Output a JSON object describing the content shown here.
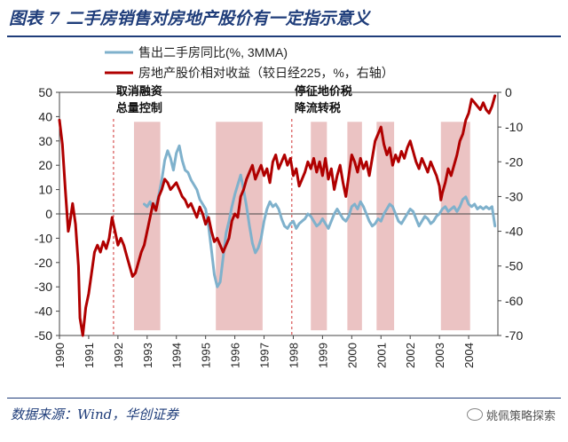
{
  "header": {
    "title": "图表 7   二手房销售对房地产股价有一定指示意义"
  },
  "footer": {
    "source": "数据来源：Wind，华创证券",
    "watermark": "姚佩策略探索"
  },
  "colors": {
    "blue_series": "#7fb1cc",
    "red_series": "#b00000",
    "shade": "#e8b8b8",
    "rule": "#1f3d7a",
    "annotation_line": "#d03030"
  },
  "chart_data": {
    "type": "line",
    "title": "",
    "x_range": [
      1990.0,
      2005.0
    ],
    "xtick_labels": [
      "1990",
      "1991",
      "1992",
      "1993",
      "1994",
      "1995",
      "1996",
      "1997",
      "1998",
      "1999",
      "2000",
      "2001",
      "2002",
      "2003",
      "2004"
    ],
    "y_left": {
      "range": [
        -50,
        50
      ],
      "ticks": [
        50,
        40,
        30,
        20,
        10,
        0,
        -10,
        -20,
        -30,
        -40,
        -50
      ]
    },
    "y_right": {
      "range": [
        -70,
        0
      ],
      "ticks": [
        0,
        -10,
        -20,
        -30,
        -40,
        -50,
        -60,
        -70
      ]
    },
    "legend": {
      "position": "top",
      "entries": [
        "售出二手房同比(%, 3MMA)",
        "房地产股价相对收益（较日经225，%，右轴）"
      ]
    },
    "annotations": [
      {
        "x": 1991.85,
        "lines": [
          "取消融资",
          "总量控制"
        ]
      },
      {
        "x": 1997.95,
        "lines": [
          "停征地价税",
          "降流转税"
        ]
      }
    ],
    "shaded_periods": [
      [
        1992.55,
        1993.45
      ],
      [
        1995.35,
        1996.95
      ],
      [
        1998.6,
        1999.15
      ],
      [
        1999.85,
        2000.35
      ],
      [
        2000.85,
        2001.45
      ],
      [
        2003.05,
        2004.05
      ]
    ],
    "series": [
      {
        "name": "售出二手房同比(%, 3MMA)",
        "axis": "left",
        "points": [
          [
            1992.9,
            4
          ],
          [
            1993.0,
            3
          ],
          [
            1993.1,
            5
          ],
          [
            1993.2,
            2
          ],
          [
            1993.3,
            3
          ],
          [
            1993.4,
            8
          ],
          [
            1993.5,
            14
          ],
          [
            1993.6,
            22
          ],
          [
            1993.7,
            26
          ],
          [
            1993.8,
            23
          ],
          [
            1993.9,
            18
          ],
          [
            1994.0,
            25
          ],
          [
            1994.1,
            28
          ],
          [
            1994.2,
            22
          ],
          [
            1994.3,
            18
          ],
          [
            1994.4,
            17
          ],
          [
            1994.5,
            14
          ],
          [
            1994.6,
            12
          ],
          [
            1994.7,
            10
          ],
          [
            1994.8,
            6
          ],
          [
            1994.9,
            4
          ],
          [
            1995.0,
            2
          ],
          [
            1995.1,
            -5
          ],
          [
            1995.2,
            -15
          ],
          [
            1995.3,
            -25
          ],
          [
            1995.4,
            -30
          ],
          [
            1995.5,
            -28
          ],
          [
            1995.6,
            -18
          ],
          [
            1995.7,
            -8
          ],
          [
            1995.8,
            -3
          ],
          [
            1995.9,
            3
          ],
          [
            1996.0,
            8
          ],
          [
            1996.1,
            12
          ],
          [
            1996.2,
            16
          ],
          [
            1996.3,
            10
          ],
          [
            1996.4,
            3
          ],
          [
            1996.5,
            -5
          ],
          [
            1996.6,
            -12
          ],
          [
            1996.7,
            -16
          ],
          [
            1996.8,
            -14
          ],
          [
            1996.9,
            -10
          ],
          [
            1997.0,
            -3
          ],
          [
            1997.1,
            2
          ],
          [
            1997.2,
            5
          ],
          [
            1997.3,
            3
          ],
          [
            1997.4,
            4
          ],
          [
            1997.5,
            2
          ],
          [
            1997.6,
            -2
          ],
          [
            1997.7,
            -5
          ],
          [
            1997.8,
            -6
          ],
          [
            1997.9,
            -4
          ],
          [
            1998.0,
            -3
          ],
          [
            1998.1,
            -6
          ],
          [
            1998.2,
            -4
          ],
          [
            1998.3,
            -3
          ],
          [
            1998.4,
            -2
          ],
          [
            1998.5,
            0
          ],
          [
            1998.6,
            -1
          ],
          [
            1998.7,
            -3
          ],
          [
            1998.8,
            -5
          ],
          [
            1998.9,
            -4
          ],
          [
            1999.0,
            -2
          ],
          [
            1999.1,
            -4
          ],
          [
            1999.2,
            -6
          ],
          [
            1999.3,
            -3
          ],
          [
            1999.4,
            0
          ],
          [
            1999.5,
            2
          ],
          [
            1999.6,
            0
          ],
          [
            1999.7,
            -2
          ],
          [
            1999.8,
            -3
          ],
          [
            1999.9,
            -1
          ],
          [
            2000.0,
            3
          ],
          [
            2000.1,
            4
          ],
          [
            2000.2,
            2
          ],
          [
            2000.3,
            5
          ],
          [
            2000.4,
            3
          ],
          [
            2000.5,
            0
          ],
          [
            2000.6,
            -3
          ],
          [
            2000.7,
            -5
          ],
          [
            2000.8,
            -4
          ],
          [
            2000.9,
            -2
          ],
          [
            2001.0,
            -3
          ],
          [
            2001.1,
            0
          ],
          [
            2001.2,
            2
          ],
          [
            2001.3,
            4
          ],
          [
            2001.4,
            3
          ],
          [
            2001.5,
            0
          ],
          [
            2001.6,
            -3
          ],
          [
            2001.7,
            -4
          ],
          [
            2001.8,
            -2
          ],
          [
            2001.9,
            0
          ],
          [
            2002.0,
            2
          ],
          [
            2002.1,
            1
          ],
          [
            2002.2,
            -2
          ],
          [
            2002.3,
            -5
          ],
          [
            2002.4,
            -3
          ],
          [
            2002.5,
            -1
          ],
          [
            2002.6,
            -2
          ],
          [
            2002.7,
            -4
          ],
          [
            2002.8,
            -3
          ],
          [
            2002.9,
            -1
          ],
          [
            2003.0,
            0
          ],
          [
            2003.1,
            2
          ],
          [
            2003.2,
            3
          ],
          [
            2003.3,
            1
          ],
          [
            2003.4,
            2
          ],
          [
            2003.5,
            3
          ],
          [
            2003.6,
            1
          ],
          [
            2003.7,
            3
          ],
          [
            2003.8,
            6
          ],
          [
            2003.9,
            7
          ],
          [
            2004.0,
            4
          ],
          [
            2004.1,
            3
          ],
          [
            2004.2,
            4
          ],
          [
            2004.3,
            2
          ],
          [
            2004.4,
            3
          ],
          [
            2004.5,
            2
          ],
          [
            2004.6,
            3
          ],
          [
            2004.7,
            2
          ],
          [
            2004.8,
            3
          ],
          [
            2004.9,
            -5
          ]
        ]
      },
      {
        "name": "房地产股价相对收益（较日经225，%，右轴）",
        "axis": "right",
        "points": [
          [
            1990.0,
            -8
          ],
          [
            1990.1,
            -15
          ],
          [
            1990.2,
            -28
          ],
          [
            1990.3,
            -40
          ],
          [
            1990.35,
            -38
          ],
          [
            1990.45,
            -32
          ],
          [
            1990.55,
            -38
          ],
          [
            1990.65,
            -50
          ],
          [
            1990.7,
            -65
          ],
          [
            1990.8,
            -70
          ],
          [
            1990.9,
            -62
          ],
          [
            1991.0,
            -58
          ],
          [
            1991.1,
            -52
          ],
          [
            1991.2,
            -46
          ],
          [
            1991.3,
            -44
          ],
          [
            1991.4,
            -46
          ],
          [
            1991.5,
            -43
          ],
          [
            1991.6,
            -45
          ],
          [
            1991.7,
            -42
          ],
          [
            1991.8,
            -36
          ],
          [
            1991.9,
            -40
          ],
          [
            1992.0,
            -44
          ],
          [
            1992.1,
            -42
          ],
          [
            1992.2,
            -44
          ],
          [
            1992.3,
            -47
          ],
          [
            1992.4,
            -50
          ],
          [
            1992.5,
            -53
          ],
          [
            1992.6,
            -52
          ],
          [
            1992.7,
            -49
          ],
          [
            1992.8,
            -46
          ],
          [
            1992.9,
            -44
          ],
          [
            1993.0,
            -40
          ],
          [
            1993.1,
            -36
          ],
          [
            1993.2,
            -32
          ],
          [
            1993.3,
            -34
          ],
          [
            1993.4,
            -30
          ],
          [
            1993.5,
            -28
          ],
          [
            1993.6,
            -25
          ],
          [
            1993.7,
            -26
          ],
          [
            1993.8,
            -28
          ],
          [
            1993.9,
            -27
          ],
          [
            1994.0,
            -26
          ],
          [
            1994.1,
            -28
          ],
          [
            1994.2,
            -30
          ],
          [
            1994.3,
            -31
          ],
          [
            1994.4,
            -33
          ],
          [
            1994.5,
            -32
          ],
          [
            1994.6,
            -34
          ],
          [
            1994.7,
            -36
          ],
          [
            1994.8,
            -33
          ],
          [
            1994.9,
            -35
          ],
          [
            1995.0,
            -38
          ],
          [
            1995.1,
            -36
          ],
          [
            1995.2,
            -40
          ],
          [
            1995.3,
            -43
          ],
          [
            1995.4,
            -42
          ],
          [
            1995.5,
            -44
          ],
          [
            1995.6,
            -46
          ],
          [
            1995.7,
            -44
          ],
          [
            1995.8,
            -42
          ],
          [
            1995.9,
            -37
          ],
          [
            1996.0,
            -35
          ],
          [
            1996.1,
            -36
          ],
          [
            1996.2,
            -30
          ],
          [
            1996.3,
            -28
          ],
          [
            1996.4,
            -25
          ],
          [
            1996.5,
            -23
          ],
          [
            1996.6,
            -21
          ],
          [
            1996.7,
            -25
          ],
          [
            1996.8,
            -23
          ],
          [
            1996.9,
            -21
          ],
          [
            1997.0,
            -24
          ],
          [
            1997.1,
            -22
          ],
          [
            1997.2,
            -26
          ],
          [
            1997.3,
            -20
          ],
          [
            1997.4,
            -18
          ],
          [
            1997.5,
            -22
          ],
          [
            1997.6,
            -20
          ],
          [
            1997.7,
            -18
          ],
          [
            1997.8,
            -21
          ],
          [
            1997.9,
            -19
          ],
          [
            1998.0,
            -24
          ],
          [
            1998.1,
            -22
          ],
          [
            1998.2,
            -27
          ],
          [
            1998.3,
            -25
          ],
          [
            1998.4,
            -23
          ],
          [
            1998.5,
            -20
          ],
          [
            1998.6,
            -22
          ],
          [
            1998.7,
            -19
          ],
          [
            1998.8,
            -23
          ],
          [
            1998.9,
            -20
          ],
          [
            1999.0,
            -24
          ],
          [
            1999.1,
            -19
          ],
          [
            1999.2,
            -25
          ],
          [
            1999.3,
            -22
          ],
          [
            1999.4,
            -28
          ],
          [
            1999.5,
            -24
          ],
          [
            1999.6,
            -21
          ],
          [
            1999.7,
            -26
          ],
          [
            1999.8,
            -30
          ],
          [
            1999.9,
            -24
          ],
          [
            2000.0,
            -18
          ],
          [
            2000.1,
            -20
          ],
          [
            2000.2,
            -23
          ],
          [
            2000.3,
            -19
          ],
          [
            2000.4,
            -22
          ],
          [
            2000.5,
            -20
          ],
          [
            2000.6,
            -24
          ],
          [
            2000.7,
            -19
          ],
          [
            2000.8,
            -14
          ],
          [
            2000.9,
            -12
          ],
          [
            2001.0,
            -10
          ],
          [
            2001.1,
            -15
          ],
          [
            2001.2,
            -18
          ],
          [
            2001.3,
            -16
          ],
          [
            2001.4,
            -21
          ],
          [
            2001.5,
            -18
          ],
          [
            2001.6,
            -20
          ],
          [
            2001.7,
            -17
          ],
          [
            2001.8,
            -19
          ],
          [
            2001.9,
            -16
          ],
          [
            2002.0,
            -14
          ],
          [
            2002.1,
            -17
          ],
          [
            2002.2,
            -20
          ],
          [
            2002.3,
            -22
          ],
          [
            2002.4,
            -19
          ],
          [
            2002.5,
            -21
          ],
          [
            2002.6,
            -23
          ],
          [
            2002.7,
            -20
          ],
          [
            2002.8,
            -22
          ],
          [
            2002.9,
            -24
          ],
          [
            2003.0,
            -27
          ],
          [
            2003.05,
            -31
          ],
          [
            2003.1,
            -29
          ],
          [
            2003.2,
            -26
          ],
          [
            2003.3,
            -22
          ],
          [
            2003.4,
            -24
          ],
          [
            2003.5,
            -21
          ],
          [
            2003.6,
            -18
          ],
          [
            2003.7,
            -14
          ],
          [
            2003.8,
            -12
          ],
          [
            2003.9,
            -8
          ],
          [
            2004.0,
            -6
          ],
          [
            2004.1,
            -2
          ],
          [
            2004.2,
            -3
          ],
          [
            2004.3,
            -4
          ],
          [
            2004.4,
            -5
          ],
          [
            2004.5,
            -3
          ],
          [
            2004.6,
            -5
          ],
          [
            2004.7,
            -6
          ],
          [
            2004.8,
            -4
          ],
          [
            2004.9,
            -1
          ]
        ]
      }
    ]
  }
}
